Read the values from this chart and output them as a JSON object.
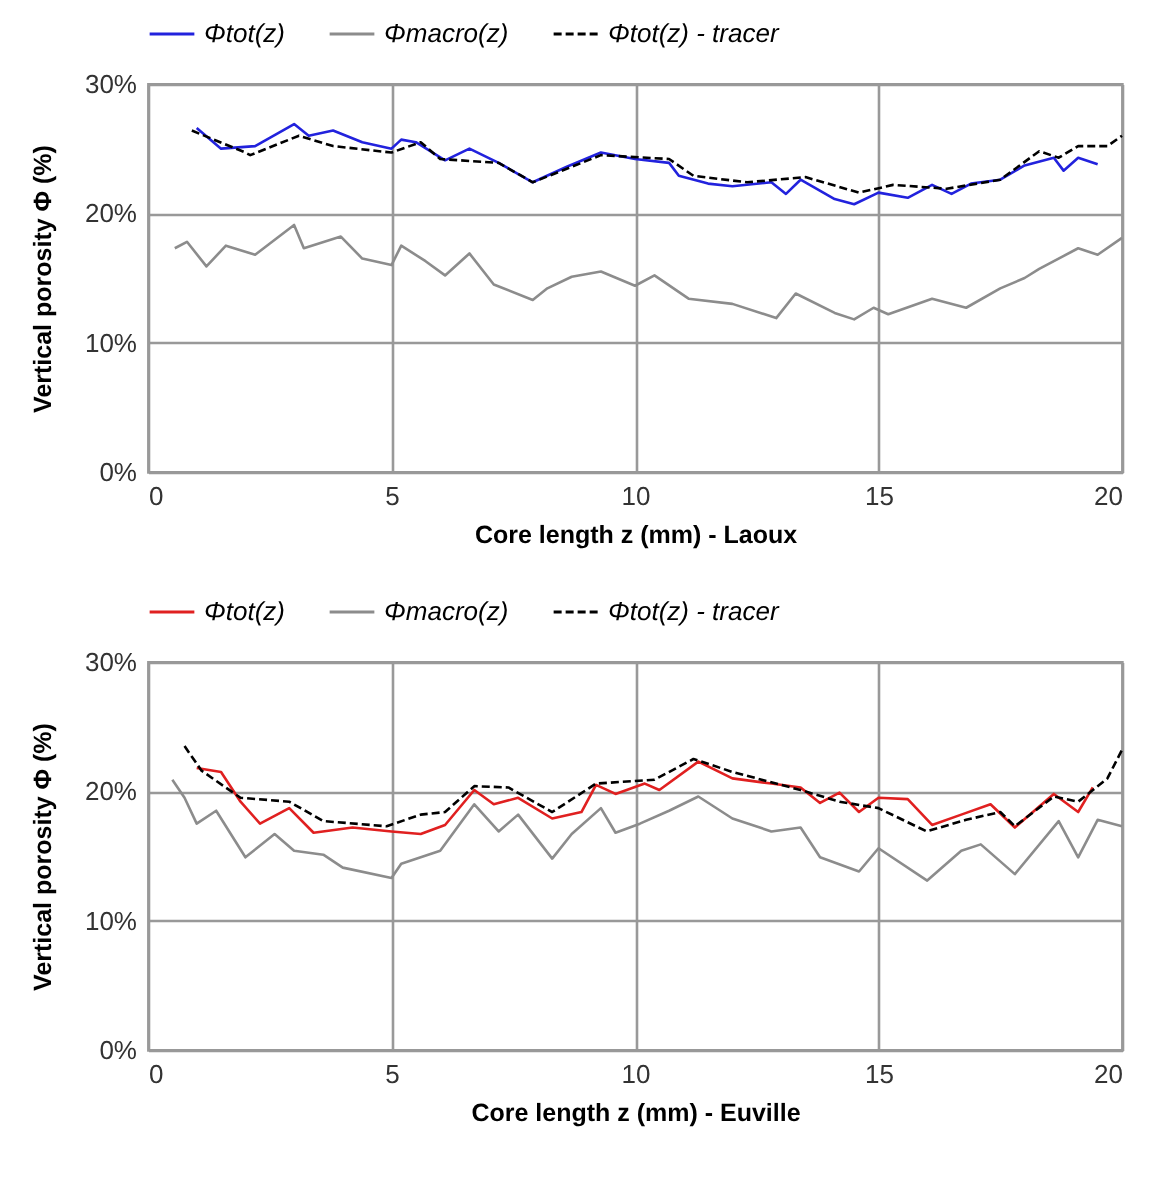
{
  "chart_data": [
    {
      "type": "line",
      "xlabel": "Core length z (mm) - Laoux",
      "ylabel": "Vertical porosity Φ (%)",
      "xlim": [
        0,
        20
      ],
      "xticks": [
        0,
        5,
        10,
        15,
        20
      ],
      "ylim": [
        0,
        30
      ],
      "yticks": [
        {
          "value": 0,
          "label": "0%"
        },
        {
          "value": 10,
          "label": "10%"
        },
        {
          "value": 20,
          "label": "20%"
        },
        {
          "value": 30,
          "label": "30%"
        }
      ],
      "grid": true,
      "legend": "top",
      "series": [
        {
          "name": "Φtot(z)",
          "color": "#2222dd",
          "line_style": "solid",
          "x": [
            1.0,
            1.5,
            2.2,
            3.0,
            3.3,
            3.8,
            4.4,
            5.0,
            5.2,
            5.5,
            6.1,
            6.6,
            7.2,
            7.9,
            8.6,
            9.3,
            10.0,
            10.7,
            10.9,
            11.5,
            12.0,
            12.8,
            13.1,
            13.4,
            14.1,
            14.5,
            15.0,
            15.6,
            16.1,
            16.5,
            16.9,
            17.5,
            18.0,
            18.6,
            18.8,
            19.1,
            19.5
          ],
          "values": [
            26.6,
            25.0,
            25.2,
            26.9,
            26.0,
            26.4,
            25.5,
            25.0,
            25.7,
            25.5,
            24.1,
            25.0,
            23.9,
            22.4,
            23.6,
            24.7,
            24.2,
            23.9,
            22.9,
            22.3,
            22.1,
            22.4,
            21.5,
            22.6,
            21.1,
            20.7,
            21.6,
            21.2,
            22.2,
            21.5,
            22.3,
            22.6,
            23.7,
            24.3,
            23.3,
            24.3,
            23.8
          ]
        },
        {
          "name": "Φmacro(z)",
          "color": "#8c8c8c",
          "line_style": "solid",
          "x": [
            0.55,
            0.8,
            1.2,
            1.6,
            2.2,
            3.0,
            3.2,
            3.96,
            4.4,
            5.0,
            5.2,
            5.7,
            6.1,
            6.6,
            7.1,
            7.9,
            8.2,
            8.7,
            9.3,
            10.0,
            10.4,
            11.1,
            12.0,
            12.9,
            13.3,
            14.1,
            14.5,
            14.9,
            15.2,
            16.1,
            16.8,
            17.5,
            18.0,
            18.3,
            19.1,
            19.5,
            20.0
          ],
          "values": [
            17.3,
            17.8,
            15.9,
            17.5,
            16.8,
            19.1,
            17.3,
            18.2,
            16.5,
            16.0,
            17.5,
            16.3,
            15.2,
            16.9,
            14.5,
            13.3,
            14.2,
            15.1,
            15.5,
            14.4,
            15.2,
            13.4,
            13.0,
            11.9,
            13.8,
            12.3,
            11.8,
            12.7,
            12.2,
            13.4,
            12.7,
            14.2,
            15.0,
            15.7,
            17.3,
            16.8,
            18.1
          ]
        },
        {
          "name": "Φtot(z) - tracer",
          "color": "#000000",
          "line_style": "dashed",
          "x": [
            0.9,
            2.0,
            2.1,
            3.1,
            3.8,
            5.0,
            5.6,
            6.0,
            7.2,
            7.9,
            9.3,
            10.7,
            11.2,
            12.3,
            13.5,
            14.6,
            15.3,
            16.4,
            17.5,
            18.3,
            18.7,
            19.1,
            19.7,
            20.0
          ],
          "values": [
            26.4,
            24.7,
            24.5,
            26.0,
            25.2,
            24.7,
            25.5,
            24.2,
            23.9,
            22.4,
            24.5,
            24.2,
            22.9,
            22.4,
            22.8,
            21.6,
            22.2,
            21.9,
            22.6,
            24.8,
            24.3,
            25.2,
            25.2,
            26.0
          ]
        }
      ]
    },
    {
      "type": "line",
      "xlabel": "Core length z (mm) - Euville",
      "ylabel": "Vertical porosity Φ (%)",
      "xlim": [
        0,
        20
      ],
      "xticks": [
        0,
        5,
        10,
        15,
        20
      ],
      "ylim": [
        0,
        30
      ],
      "yticks": [
        {
          "value": 0,
          "label": "0%"
        },
        {
          "value": 10,
          "label": "10%"
        },
        {
          "value": 20,
          "label": "20%"
        },
        {
          "value": 30,
          "label": "30%"
        }
      ],
      "grid": true,
      "legend": "top",
      "series": [
        {
          "name": "Φtot(z)",
          "color": "#e02020",
          "line_style": "solid",
          "x": [
            1.0,
            1.5,
            1.9,
            2.3,
            2.9,
            3.4,
            4.2,
            5.0,
            5.6,
            6.1,
            6.7,
            7.1,
            7.6,
            8.3,
            8.9,
            9.2,
            9.6,
            10.2,
            10.5,
            11.3,
            12.0,
            12.8,
            13.4,
            13.8,
            14.2,
            14.6,
            15.0,
            15.6,
            16.1,
            16.7,
            17.3,
            17.8,
            18.6,
            19.1,
            19.4
          ],
          "values": [
            21.8,
            21.5,
            19.2,
            17.5,
            18.7,
            16.8,
            17.2,
            16.9,
            16.7,
            17.4,
            20.1,
            19.0,
            19.5,
            17.9,
            18.4,
            20.5,
            19.8,
            20.6,
            20.1,
            22.3,
            21.0,
            20.6,
            20.3,
            19.1,
            19.9,
            18.4,
            19.5,
            19.4,
            17.4,
            18.2,
            19.0,
            17.2,
            19.8,
            18.4,
            20.3
          ]
        },
        {
          "name": "Φmacro(z)",
          "color": "#8c8c8c",
          "line_style": "solid",
          "x": [
            0.5,
            0.75,
            1.0,
            1.4,
            2.0,
            2.6,
            3.0,
            3.6,
            4.0,
            5.0,
            5.2,
            6.0,
            6.7,
            7.2,
            7.6,
            8.3,
            8.7,
            9.3,
            9.6,
            10.1,
            10.7,
            11.3,
            12.0,
            12.8,
            13.4,
            13.8,
            14.6,
            15.0,
            16.0,
            16.7,
            17.1,
            17.8,
            18.7,
            19.1,
            19.5,
            20.0
          ],
          "values": [
            20.9,
            19.5,
            17.5,
            18.5,
            14.9,
            16.7,
            15.4,
            15.1,
            14.1,
            13.3,
            14.4,
            15.4,
            19.0,
            16.9,
            18.2,
            14.8,
            16.7,
            18.7,
            16.8,
            17.5,
            18.5,
            19.6,
            17.9,
            16.9,
            17.2,
            14.9,
            13.8,
            15.6,
            13.1,
            15.4,
            15.9,
            13.6,
            17.7,
            14.9,
            17.8,
            17.3
          ]
        },
        {
          "name": "Φtot(z) - tracer",
          "color": "#000000",
          "line_style": "dashed",
          "x": [
            0.75,
            1.1,
            1.9,
            2.9,
            3.6,
            4.9,
            5.6,
            6.1,
            6.7,
            7.4,
            8.3,
            9.2,
            10.4,
            11.2,
            12.0,
            13.4,
            14.2,
            15.0,
            15.99,
            16.8,
            17.5,
            17.8,
            18.6,
            19.1,
            19.7,
            20.0
          ],
          "values": [
            23.5,
            21.6,
            19.5,
            19.2,
            17.7,
            17.3,
            18.2,
            18.4,
            20.4,
            20.3,
            18.4,
            20.6,
            20.9,
            22.5,
            21.5,
            20.1,
            19.2,
            18.7,
            16.9,
            17.8,
            18.4,
            17.3,
            19.6,
            19.2,
            21.0,
            23.2
          ]
        }
      ]
    }
  ]
}
